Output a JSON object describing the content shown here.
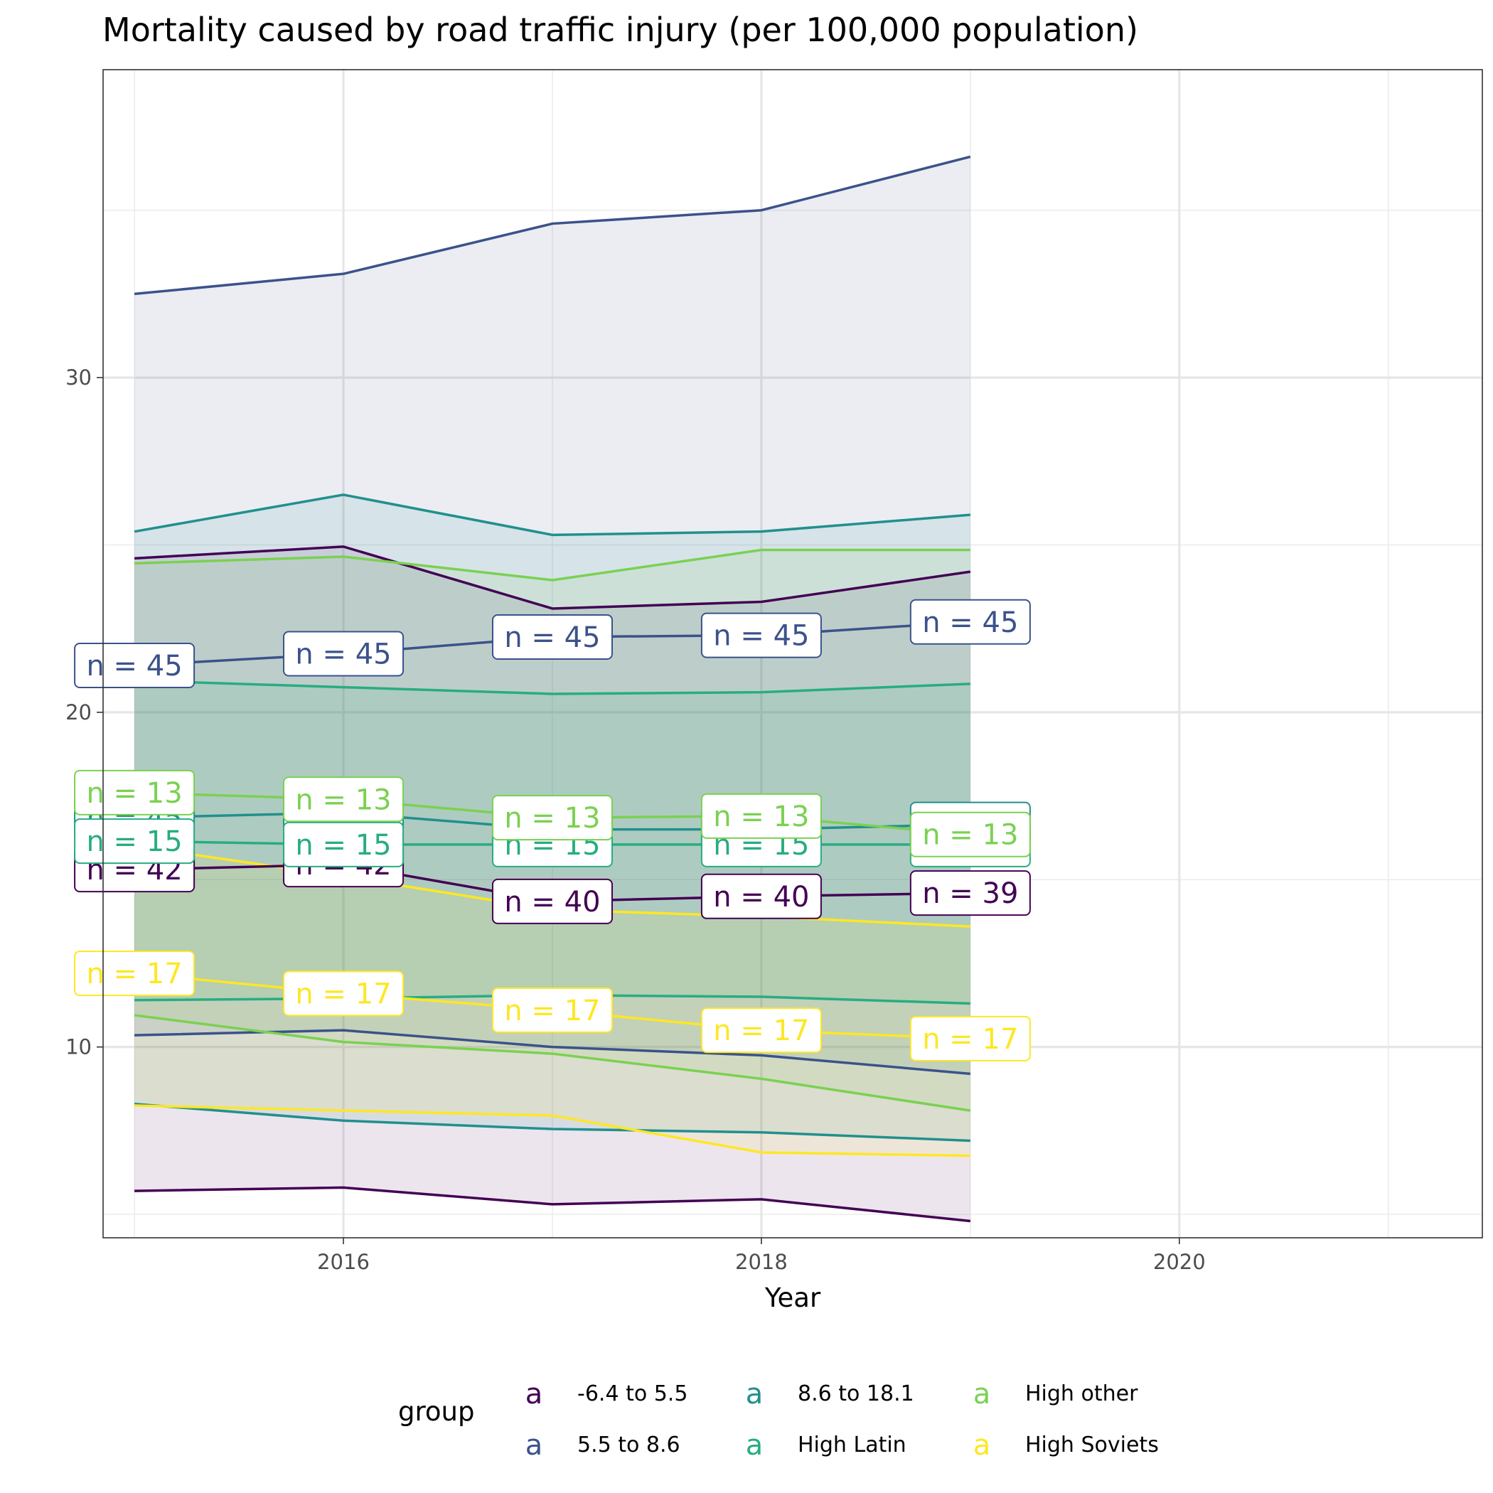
{
  "chart_data": {
    "type": "area",
    "title": "Mortality caused by road traffic injury (per 100,000 population)",
    "xlabel": "Year",
    "ylabel": "",
    "xlim": [
      2014.85,
      2021.45
    ],
    "ylim": [
      4.3,
      39.2
    ],
    "x_ticks": [
      2016,
      2018,
      2020
    ],
    "y_ticks": [
      10,
      20,
      30
    ],
    "x_tick_labels": [
      "2016",
      "2018",
      "2020"
    ],
    "y_tick_labels": [
      "10",
      "20",
      "30"
    ],
    "grid": true,
    "legend": {
      "title": "group",
      "position": "bottom",
      "key_glyph": "a",
      "entries": [
        "-6.4 to 5.5",
        "8.6 to 18.1",
        "High other",
        "5.5 to 8.6",
        "High Latin",
        "High Soviets"
      ]
    },
    "x": [
      2015,
      2016,
      2017,
      2018,
      2019
    ],
    "series": [
      {
        "name": "-6.4 to 5.5",
        "color": "#440154",
        "mean": [
          15.3,
          15.45,
          14.35,
          14.5,
          14.6
        ],
        "lower": [
          5.7,
          5.8,
          5.3,
          5.45,
          4.8
        ],
        "upper": [
          24.6,
          24.95,
          23.1,
          23.3,
          24.2
        ],
        "n_labels": [
          "n = 42",
          "n = 42",
          "n = 40",
          "n = 40",
          "n = 39"
        ]
      },
      {
        "name": "5.5 to 8.6",
        "color": "#3B528B",
        "mean": [
          21.4,
          21.75,
          22.25,
          22.3,
          22.7
        ],
        "lower": [
          10.35,
          10.5,
          10.0,
          9.75,
          9.2
        ],
        "upper": [
          32.5,
          33.1,
          34.6,
          35.0,
          36.6
        ],
        "n_labels": [
          "n = 45",
          "n = 45",
          "n = 45",
          "n = 45",
          "n = 45"
        ]
      },
      {
        "name": "8.6 to 18.1",
        "color": "#21908C",
        "mean": [
          16.85,
          17.0,
          16.5,
          16.5,
          16.65
        ],
        "lower": [
          8.3,
          7.8,
          7.55,
          7.45,
          7.2
        ],
        "upper": [
          25.4,
          26.5,
          25.3,
          25.4,
          25.9
        ],
        "n_labels": [
          "n = 45",
          "n = 45",
          "n = 45",
          "n = 45",
          "n = 45"
        ]
      },
      {
        "name": "High Latin",
        "color": "#27AD81",
        "mean": [
          16.15,
          16.05,
          16.05,
          16.05,
          16.05
        ],
        "lower": [
          11.4,
          11.45,
          11.55,
          11.5,
          11.3
        ],
        "upper": [
          20.95,
          20.75,
          20.55,
          20.6,
          20.85
        ],
        "n_labels": [
          "n = 15",
          "n = 15",
          "n = 15",
          "n = 15",
          "n = 15"
        ]
      },
      {
        "name": "High other",
        "color": "#7AD151",
        "mean": [
          17.6,
          17.4,
          16.85,
          16.9,
          16.35
        ],
        "lower": [
          10.95,
          10.15,
          9.8,
          9.05,
          8.1
        ],
        "upper": [
          24.45,
          24.65,
          23.95,
          24.85,
          24.85
        ],
        "n_labels": [
          "n = 13",
          "n = 13",
          "n = 13",
          "n = 13",
          "n = 13"
        ]
      },
      {
        "name": "High Soviets",
        "color": "#FDE725",
        "mean": [
          12.2,
          11.6,
          11.1,
          10.5,
          10.25
        ],
        "lower": [
          8.25,
          8.1,
          7.95,
          6.85,
          6.75
        ],
        "upper": [
          16.0,
          15.1,
          14.1,
          13.9,
          13.6
        ],
        "n_labels": [
          "n = 17",
          "n = 17",
          "n = 17",
          "n = 17",
          "n = 17"
        ]
      }
    ]
  }
}
